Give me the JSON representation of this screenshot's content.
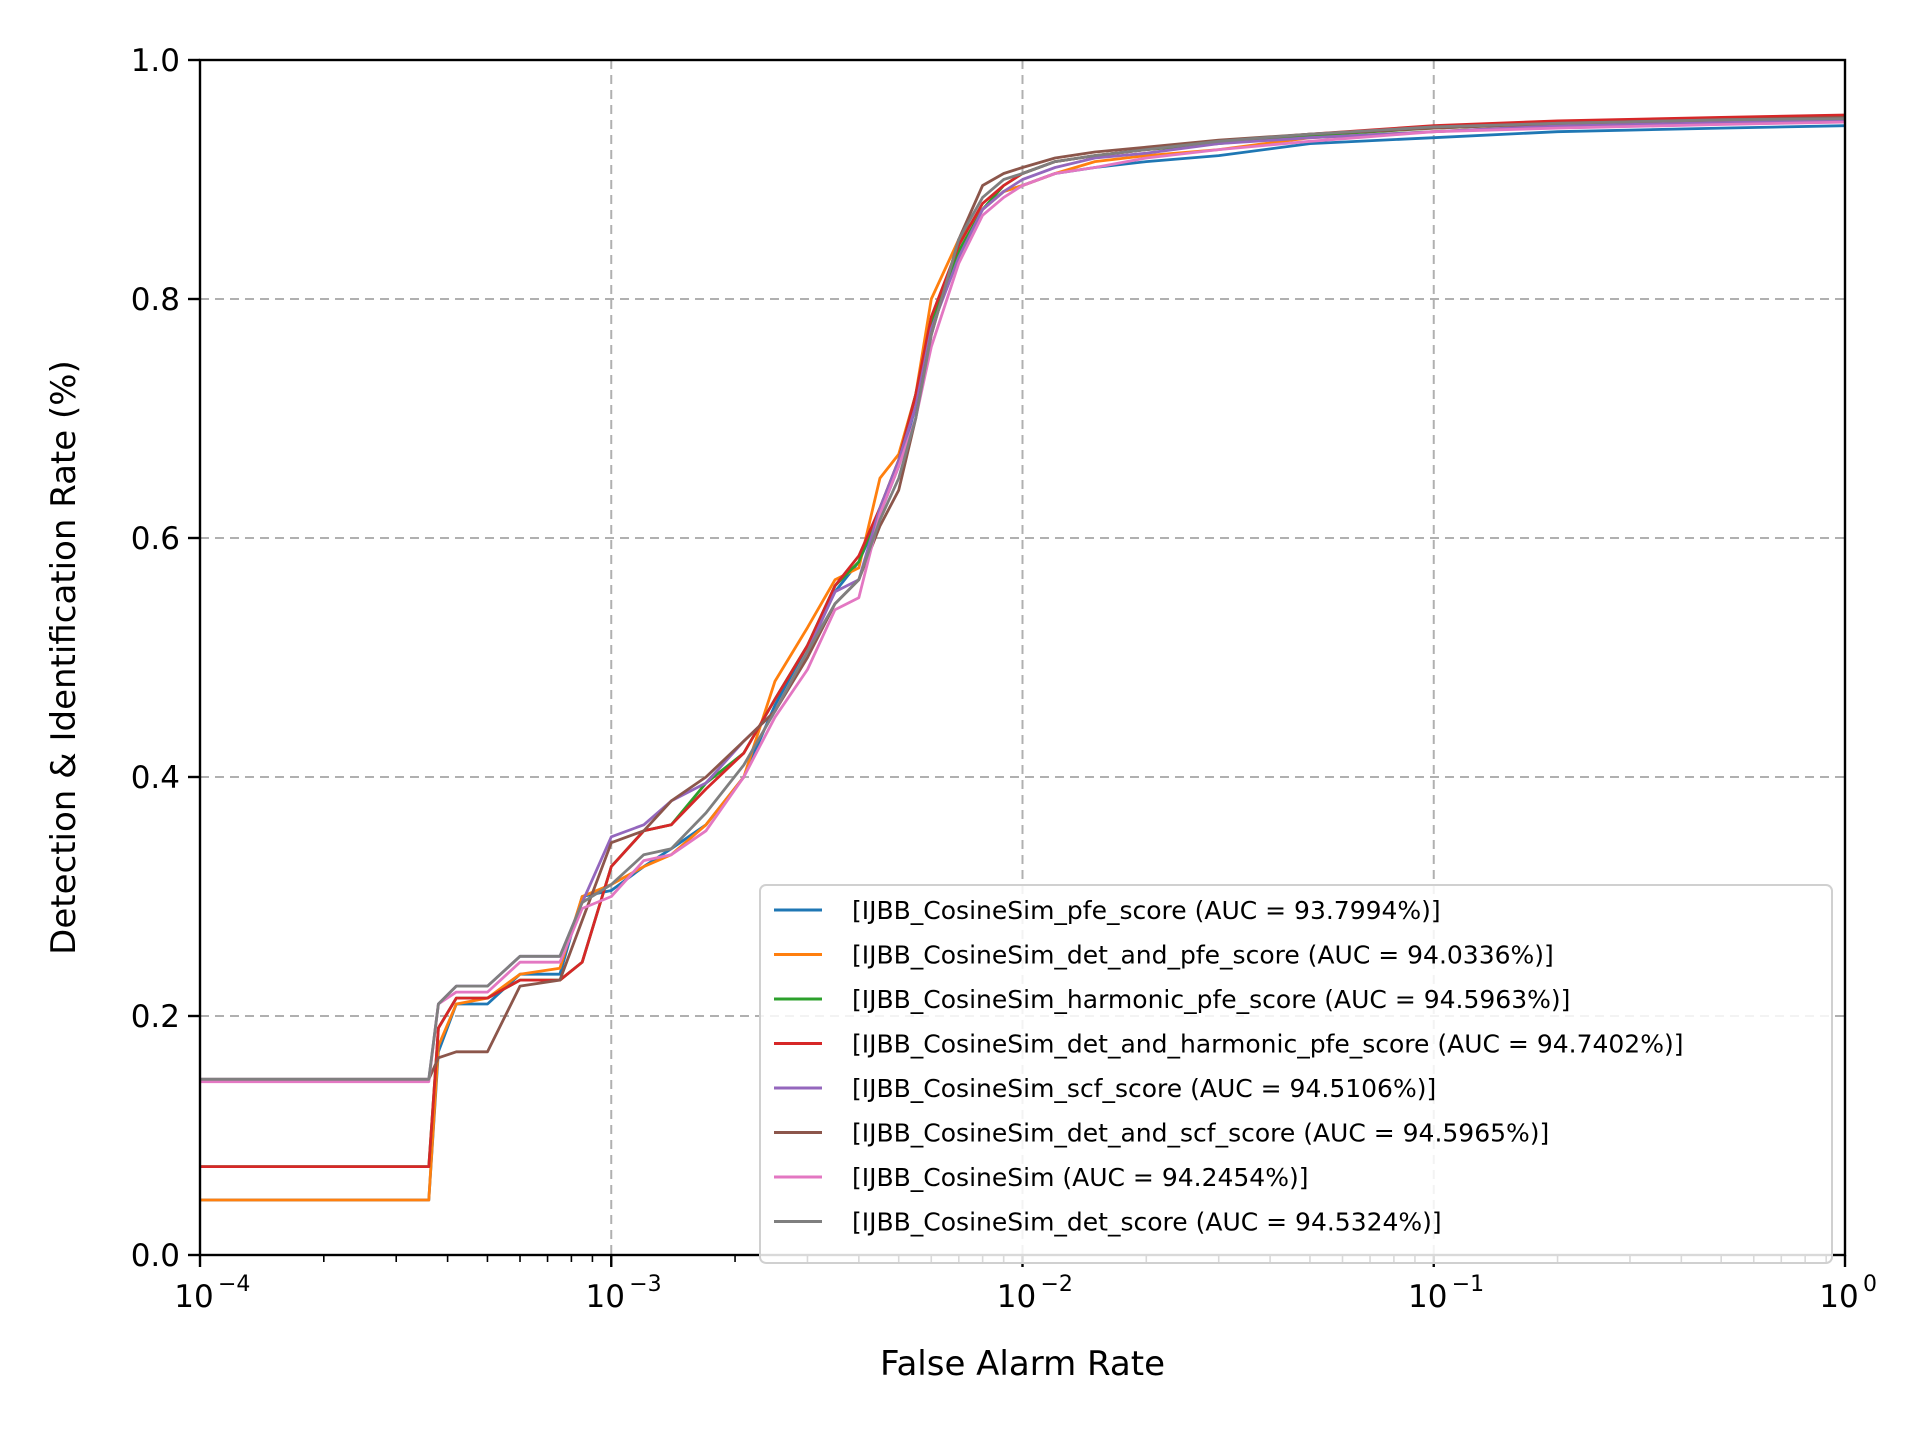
{
  "chart_data": {
    "type": "line",
    "title": "",
    "xlabel": "False Alarm Rate",
    "ylabel": "Detection & Identification Rate (%)",
    "xscale": "log",
    "xlim": [
      0.0001,
      1
    ],
    "ylim": [
      0.0,
      1.0
    ],
    "grid": true,
    "legend_position": "lower-right",
    "x_ticks": [
      {
        "value": 0.0001,
        "base": "10",
        "exp": "−4"
      },
      {
        "value": 0.001,
        "base": "10",
        "exp": "−3"
      },
      {
        "value": 0.01,
        "base": "10",
        "exp": "−2"
      },
      {
        "value": 0.1,
        "base": "10",
        "exp": "−1"
      },
      {
        "value": 1,
        "base": "10",
        "exp": "0"
      }
    ],
    "y_ticks": [
      {
        "value": 0.0,
        "label": "0.0"
      },
      {
        "value": 0.2,
        "label": "0.2"
      },
      {
        "value": 0.4,
        "label": "0.4"
      },
      {
        "value": 0.6,
        "label": "0.6"
      },
      {
        "value": 0.8,
        "label": "0.8"
      },
      {
        "value": 1.0,
        "label": "1.0"
      }
    ],
    "series": [
      {
        "name": "[IJBB_CosineSim_pfe_score (AUC = 93.7994%)]",
        "color": "#1f77b4",
        "x": [
          0.0001,
          0.00036,
          0.00038,
          0.00042,
          0.0005,
          0.0006,
          0.00075,
          0.00085,
          0.001,
          0.0012,
          0.0014,
          0.0017,
          0.0021,
          0.0025,
          0.003,
          0.0035,
          0.004,
          0.0045,
          0.005,
          0.0055,
          0.006,
          0.007,
          0.008,
          0.009,
          0.01,
          0.012,
          0.015,
          0.02,
          0.03,
          0.05,
          0.1,
          0.2,
          0.5,
          1.0
        ],
        "y": [
          0.046,
          0.046,
          0.17,
          0.21,
          0.21,
          0.235,
          0.235,
          0.3,
          0.305,
          0.325,
          0.34,
          0.36,
          0.4,
          0.46,
          0.51,
          0.555,
          0.58,
          0.62,
          0.66,
          0.71,
          0.78,
          0.84,
          0.875,
          0.89,
          0.895,
          0.905,
          0.91,
          0.915,
          0.92,
          0.93,
          0.935,
          0.94,
          0.943,
          0.945
        ]
      },
      {
        "name": "[IJBB_CosineSim_det_and_pfe_score (AUC = 94.0336%)]",
        "color": "#ff7f0e",
        "x": [
          0.0001,
          0.00036,
          0.00038,
          0.00042,
          0.0005,
          0.0006,
          0.00075,
          0.00085,
          0.001,
          0.0012,
          0.0014,
          0.0017,
          0.0021,
          0.0025,
          0.003,
          0.0035,
          0.004,
          0.0045,
          0.005,
          0.0055,
          0.006,
          0.007,
          0.008,
          0.009,
          0.01,
          0.012,
          0.015,
          0.02,
          0.03,
          0.05,
          0.1,
          0.2,
          0.5,
          1.0
        ],
        "y": [
          0.046,
          0.046,
          0.175,
          0.21,
          0.215,
          0.235,
          0.24,
          0.3,
          0.31,
          0.325,
          0.335,
          0.36,
          0.4,
          0.48,
          0.525,
          0.565,
          0.575,
          0.65,
          0.67,
          0.72,
          0.8,
          0.85,
          0.875,
          0.89,
          0.895,
          0.905,
          0.915,
          0.92,
          0.925,
          0.935,
          0.94,
          0.945,
          0.948,
          0.95
        ]
      },
      {
        "name": "[IJBB_CosineSim_harmonic_pfe_score (AUC = 94.5963%)]",
        "color": "#2ca02c",
        "x": [
          0.0001,
          0.00036,
          0.00038,
          0.00042,
          0.0005,
          0.0006,
          0.00075,
          0.00085,
          0.001,
          0.0012,
          0.0014,
          0.0017,
          0.0021,
          0.0025,
          0.003,
          0.0035,
          0.004,
          0.0045,
          0.005,
          0.0055,
          0.006,
          0.007,
          0.008,
          0.009,
          0.01,
          0.012,
          0.015,
          0.02,
          0.03,
          0.05,
          0.1,
          0.2,
          0.5,
          1.0
        ],
        "y": [
          0.074,
          0.074,
          0.19,
          0.215,
          0.215,
          0.23,
          0.23,
          0.245,
          0.325,
          0.355,
          0.36,
          0.395,
          0.42,
          0.465,
          0.51,
          0.56,
          0.58,
          0.625,
          0.665,
          0.72,
          0.78,
          0.84,
          0.875,
          0.895,
          0.905,
          0.915,
          0.92,
          0.925,
          0.93,
          0.937,
          0.943,
          0.947,
          0.95,
          0.952
        ]
      },
      {
        "name": "[IJBB_CosineSim_det_and_harmonic_pfe_score (AUC = 94.7402%)]",
        "color": "#d62728",
        "x": [
          0.0001,
          0.00036,
          0.00038,
          0.00042,
          0.0005,
          0.0006,
          0.00075,
          0.00085,
          0.001,
          0.0012,
          0.0014,
          0.0017,
          0.0021,
          0.0025,
          0.003,
          0.0035,
          0.004,
          0.0045,
          0.005,
          0.0055,
          0.006,
          0.007,
          0.008,
          0.009,
          0.01,
          0.012,
          0.015,
          0.02,
          0.03,
          0.05,
          0.1,
          0.2,
          0.5,
          1.0
        ],
        "y": [
          0.074,
          0.074,
          0.19,
          0.215,
          0.215,
          0.23,
          0.23,
          0.245,
          0.325,
          0.355,
          0.36,
          0.39,
          0.42,
          0.465,
          0.51,
          0.56,
          0.585,
          0.625,
          0.665,
          0.72,
          0.785,
          0.845,
          0.88,
          0.895,
          0.905,
          0.915,
          0.92,
          0.925,
          0.932,
          0.938,
          0.945,
          0.949,
          0.952,
          0.954
        ]
      },
      {
        "name": "[IJBB_CosineSim_scf_score (AUC = 94.5106%)]",
        "color": "#9467bd",
        "x": [
          0.0001,
          0.00036,
          0.00038,
          0.00042,
          0.0005,
          0.0006,
          0.00075,
          0.00085,
          0.001,
          0.0012,
          0.0014,
          0.0017,
          0.0021,
          0.0025,
          0.003,
          0.0035,
          0.004,
          0.0045,
          0.005,
          0.0055,
          0.006,
          0.007,
          0.008,
          0.009,
          0.01,
          0.012,
          0.015,
          0.02,
          0.03,
          0.05,
          0.1,
          0.2,
          0.5,
          1.0
        ],
        "y": [
          0.147,
          0.147,
          0.21,
          0.225,
          0.225,
          0.25,
          0.25,
          0.295,
          0.35,
          0.36,
          0.38,
          0.395,
          0.43,
          0.455,
          0.505,
          0.555,
          0.565,
          0.625,
          0.665,
          0.71,
          0.775,
          0.835,
          0.875,
          0.89,
          0.9,
          0.91,
          0.918,
          0.922,
          0.93,
          0.935,
          0.94,
          0.945,
          0.948,
          0.95
        ]
      },
      {
        "name": "[IJBB_CosineSim_det_and_scf_score (AUC = 94.5965%)]",
        "color": "#8c564b",
        "x": [
          0.0001,
          0.00036,
          0.00038,
          0.00042,
          0.0005,
          0.0006,
          0.00075,
          0.00085,
          0.001,
          0.0012,
          0.0014,
          0.0017,
          0.0021,
          0.0025,
          0.003,
          0.0035,
          0.004,
          0.0045,
          0.005,
          0.0055,
          0.006,
          0.007,
          0.008,
          0.009,
          0.01,
          0.012,
          0.015,
          0.02,
          0.03,
          0.05,
          0.1,
          0.2,
          0.5,
          1.0
        ],
        "y": [
          0.147,
          0.147,
          0.165,
          0.17,
          0.17,
          0.225,
          0.23,
          0.28,
          0.345,
          0.355,
          0.38,
          0.4,
          0.43,
          0.455,
          0.5,
          0.545,
          0.565,
          0.61,
          0.64,
          0.7,
          0.77,
          0.85,
          0.895,
          0.905,
          0.91,
          0.918,
          0.923,
          0.927,
          0.933,
          0.938,
          0.943,
          0.947,
          0.95,
          0.952
        ]
      },
      {
        "name": "[IJBB_CosineSim (AUC = 94.2454%)]",
        "color": "#e377c2",
        "x": [
          0.0001,
          0.00036,
          0.00038,
          0.00042,
          0.0005,
          0.0006,
          0.00075,
          0.00085,
          0.001,
          0.0012,
          0.0014,
          0.0017,
          0.0021,
          0.0025,
          0.003,
          0.0035,
          0.004,
          0.0045,
          0.005,
          0.0055,
          0.006,
          0.007,
          0.008,
          0.009,
          0.01,
          0.012,
          0.015,
          0.02,
          0.03,
          0.05,
          0.1,
          0.2,
          0.5,
          1.0
        ],
        "y": [
          0.145,
          0.145,
          0.21,
          0.22,
          0.22,
          0.245,
          0.245,
          0.29,
          0.3,
          0.33,
          0.335,
          0.355,
          0.4,
          0.45,
          0.49,
          0.54,
          0.55,
          0.62,
          0.66,
          0.7,
          0.76,
          0.83,
          0.87,
          0.885,
          0.895,
          0.905,
          0.91,
          0.918,
          0.925,
          0.932,
          0.94,
          0.943,
          0.946,
          0.948
        ]
      },
      {
        "name": "[IJBB_CosineSim_det_score (AUC = 94.5324%)]",
        "color": "#7f7f7f",
        "x": [
          0.0001,
          0.00036,
          0.00038,
          0.00042,
          0.0005,
          0.0006,
          0.00075,
          0.00085,
          0.001,
          0.0012,
          0.0014,
          0.0017,
          0.0021,
          0.0025,
          0.003,
          0.0035,
          0.004,
          0.0045,
          0.005,
          0.0055,
          0.006,
          0.007,
          0.008,
          0.009,
          0.01,
          0.012,
          0.015,
          0.02,
          0.03,
          0.05,
          0.1,
          0.2,
          0.5,
          1.0
        ],
        "y": [
          0.147,
          0.147,
          0.21,
          0.225,
          0.225,
          0.25,
          0.25,
          0.295,
          0.31,
          0.335,
          0.34,
          0.37,
          0.41,
          0.455,
          0.505,
          0.545,
          0.565,
          0.615,
          0.65,
          0.7,
          0.77,
          0.85,
          0.885,
          0.9,
          0.905,
          0.915,
          0.92,
          0.925,
          0.932,
          0.938,
          0.944,
          0.947,
          0.95,
          0.951
        ]
      }
    ]
  }
}
